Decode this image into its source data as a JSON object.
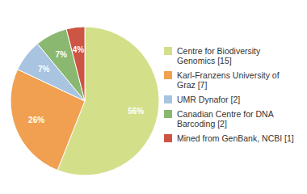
{
  "chart_data": {
    "type": "pie",
    "categories": [
      "Centre for Biodiversity\nGenomics [15]",
      "Karl-Franzens University of\nGraz [7]",
      "UMR Dynafor [2]",
      "Canadian Centre for DNA\nBarcoding [2]",
      "Mined from GenBank, NCBI [1]"
    ],
    "values": [
      56,
      26,
      7,
      7,
      4
    ],
    "value_labels": [
      "56%",
      "26%",
      "7%",
      "7%",
      "4%"
    ],
    "colors": [
      "#d4df8a",
      "#f0a050",
      "#a8c4e0",
      "#8ab870",
      "#cc5544"
    ],
    "data_labels": true,
    "legend": "right"
  }
}
